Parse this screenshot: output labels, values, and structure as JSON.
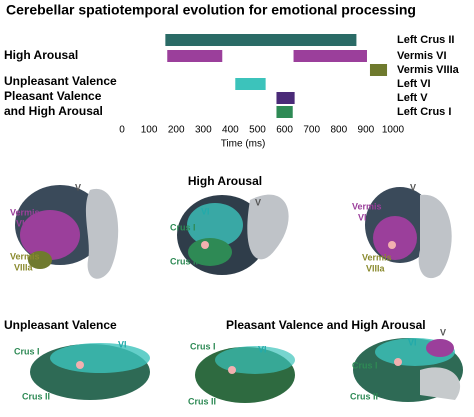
{
  "chart_data": {
    "type": "gantt",
    "title": "Cerebellar spatiotemporal evolution for emotional processing",
    "xlabel": "Time (ms)",
    "xlim": [
      0,
      1000
    ],
    "xticks": [
      0,
      100,
      200,
      300,
      400,
      500,
      600,
      700,
      800,
      900,
      1000
    ],
    "rows": [
      {
        "name": "Left Crus II",
        "color": "#2a6b66",
        "segments": [
          [
            160,
            865
          ]
        ]
      },
      {
        "name": "Vermis VI",
        "color": "#9b3f9b",
        "segments": [
          [
            167,
            370
          ],
          [
            633,
            904
          ]
        ]
      },
      {
        "name": "Vermis VIIIa",
        "color": "#6f7a2e",
        "segments": [
          [
            915,
            978
          ]
        ]
      },
      {
        "name": "Left VI",
        "color": "#3cc3bb",
        "segments": [
          [
            418,
            530
          ]
        ]
      },
      {
        "name": "Left V",
        "color": "#4a2a78",
        "segments": [
          [
            570,
            637
          ]
        ]
      },
      {
        "name": "Left Crus I",
        "color": "#2e8a55",
        "segments": [
          [
            570,
            630
          ]
        ]
      }
    ],
    "groups": [
      "High Arousal",
      "Unpleasant Valence",
      "Pleasant Valence",
      "and High Arousal"
    ]
  },
  "brain_panels": [
    {
      "title": "High Arousal",
      "labels": [
        "V",
        "Vermis",
        "VI",
        "Vermis",
        "VIIIa",
        "V",
        "VI",
        "Crus I",
        "Crus II",
        "V",
        "Vermis",
        "VI",
        "Vermis",
        "VIIIa"
      ]
    },
    {
      "title": "Unpleasant Valence",
      "labels": [
        "Crus I",
        "VI",
        "Crus II"
      ]
    },
    {
      "title": "Pleasant Valence and High Arousal",
      "labels": [
        "Crus I",
        "VI",
        "Crus II",
        "V",
        "VI",
        "Crus I",
        "Crus II"
      ]
    }
  ]
}
